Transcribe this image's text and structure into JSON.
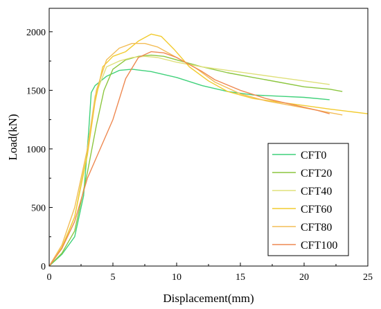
{
  "chart_data": {
    "type": "line",
    "title": "",
    "xlabel": "Displacement(mm)",
    "ylabel": "Load(kN)",
    "xlim": [
      0,
      25
    ],
    "ylim": [
      0,
      2200
    ],
    "xticks": [
      0,
      5,
      10,
      15,
      20,
      25
    ],
    "yticks": [
      0,
      500,
      1000,
      1500,
      2000
    ],
    "grid": false,
    "legend_position": "lower-right",
    "series": [
      {
        "name": "CFT0",
        "color": "#3fd17a",
        "points": [
          [
            0,
            0
          ],
          [
            1,
            100
          ],
          [
            2,
            250
          ],
          [
            2.7,
            600
          ],
          [
            3.1,
            1150
          ],
          [
            3.3,
            1480
          ],
          [
            3.6,
            1540
          ],
          [
            4.5,
            1620
          ],
          [
            5.5,
            1670
          ],
          [
            6.5,
            1680
          ],
          [
            8,
            1660
          ],
          [
            10,
            1610
          ],
          [
            12,
            1540
          ],
          [
            14,
            1490
          ],
          [
            16,
            1460
          ],
          [
            18,
            1450
          ],
          [
            20,
            1440
          ],
          [
            22,
            1420
          ]
        ]
      },
      {
        "name": "CFT20",
        "color": "#8cc63f",
        "points": [
          [
            0,
            0
          ],
          [
            1,
            110
          ],
          [
            2,
            300
          ],
          [
            3,
            800
          ],
          [
            3.7,
            1200
          ],
          [
            4.3,
            1500
          ],
          [
            5,
            1680
          ],
          [
            6,
            1760
          ],
          [
            7,
            1790
          ],
          [
            8,
            1800
          ],
          [
            9,
            1790
          ],
          [
            10,
            1760
          ],
          [
            12,
            1700
          ],
          [
            14,
            1650
          ],
          [
            16,
            1610
          ],
          [
            18,
            1570
          ],
          [
            20,
            1530
          ],
          [
            22,
            1510
          ],
          [
            23,
            1490
          ]
        ]
      },
      {
        "name": "CFT40",
        "color": "#dfe07a",
        "points": [
          [
            0,
            0
          ],
          [
            1,
            150
          ],
          [
            2,
            420
          ],
          [
            3,
            1000
          ],
          [
            3.6,
            1450
          ],
          [
            4.5,
            1700
          ],
          [
            5.5,
            1750
          ],
          [
            6.5,
            1780
          ],
          [
            7.5,
            1790
          ],
          [
            8.5,
            1780
          ],
          [
            10,
            1740
          ],
          [
            12,
            1700
          ],
          [
            14,
            1670
          ],
          [
            16,
            1640
          ],
          [
            18,
            1610
          ],
          [
            20,
            1580
          ],
          [
            22,
            1550
          ]
        ]
      },
      {
        "name": "CFT60",
        "color": "#f2cb2e",
        "points": [
          [
            0,
            0
          ],
          [
            1,
            160
          ],
          [
            2,
            420
          ],
          [
            3,
            950
          ],
          [
            3.6,
            1400
          ],
          [
            4.2,
            1700
          ],
          [
            5,
            1790
          ],
          [
            6,
            1830
          ],
          [
            7,
            1920
          ],
          [
            8,
            1980
          ],
          [
            8.8,
            1960
          ],
          [
            9.8,
            1850
          ],
          [
            11,
            1700
          ],
          [
            12.5,
            1580
          ],
          [
            14,
            1490
          ],
          [
            16,
            1430
          ],
          [
            18,
            1400
          ],
          [
            20,
            1370
          ],
          [
            22,
            1340
          ],
          [
            23.5,
            1320
          ],
          [
            25,
            1300
          ]
        ]
      },
      {
        "name": "CFT80",
        "color": "#f3bd57",
        "points": [
          [
            0,
            0
          ],
          [
            1,
            180
          ],
          [
            2,
            500
          ],
          [
            3,
            1000
          ],
          [
            3.7,
            1500
          ],
          [
            4.5,
            1760
          ],
          [
            5.5,
            1860
          ],
          [
            6.5,
            1900
          ],
          [
            7.5,
            1900
          ],
          [
            8.5,
            1870
          ],
          [
            10,
            1780
          ],
          [
            11.5,
            1690
          ],
          [
            13,
            1570
          ],
          [
            15,
            1470
          ],
          [
            17,
            1410
          ],
          [
            19,
            1370
          ],
          [
            21,
            1330
          ],
          [
            23,
            1290
          ]
        ]
      },
      {
        "name": "CFT100",
        "color": "#ee8850",
        "points": [
          [
            0,
            0
          ],
          [
            1,
            150
          ],
          [
            2,
            380
          ],
          [
            3,
            750
          ],
          [
            4,
            1000
          ],
          [
            5,
            1250
          ],
          [
            6,
            1600
          ],
          [
            7,
            1780
          ],
          [
            8,
            1830
          ],
          [
            9,
            1820
          ],
          [
            10,
            1780
          ],
          [
            11,
            1720
          ],
          [
            12,
            1660
          ],
          [
            13,
            1590
          ],
          [
            15,
            1500
          ],
          [
            17,
            1430
          ],
          [
            19,
            1380
          ],
          [
            21,
            1330
          ],
          [
            22,
            1300
          ]
        ]
      }
    ]
  }
}
